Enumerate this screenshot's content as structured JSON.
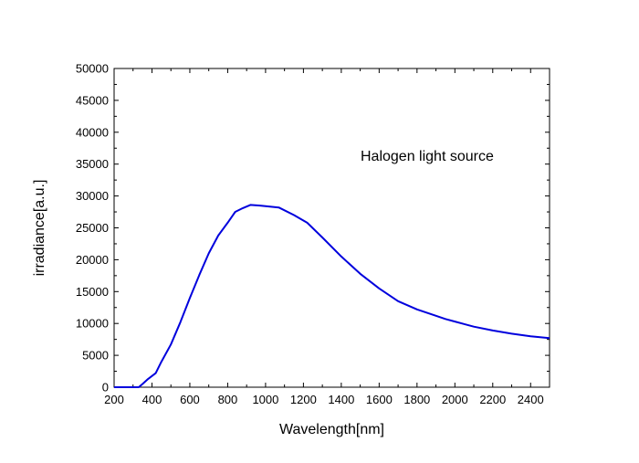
{
  "chart_data": {
    "type": "line",
    "xlabel": "Wavelength[nm]",
    "ylabel": "irradiance[a.u.]",
    "annotation": "Halogen light source",
    "xlim": [
      200,
      2500
    ],
    "ylim": [
      0,
      50000
    ],
    "x_ticks": [
      200,
      400,
      600,
      800,
      1000,
      1200,
      1400,
      1600,
      1800,
      2000,
      2200,
      2400
    ],
    "y_ticks": [
      0,
      5000,
      10000,
      15000,
      20000,
      25000,
      30000,
      35000,
      40000,
      45000,
      50000
    ],
    "grid": false,
    "series": [
      {
        "color": "#0000dd",
        "x": [
          200,
          300,
          330,
          350,
          380,
          420,
          450,
          500,
          550,
          600,
          650,
          700,
          750,
          800,
          840,
          880,
          920,
          970,
          1000,
          1070,
          1150,
          1220,
          1300,
          1400,
          1500,
          1600,
          1700,
          1800,
          1900,
          1950,
          2000,
          2100,
          2200,
          2300,
          2400,
          2500
        ],
        "y": [
          0,
          0,
          0,
          500,
          1300,
          2200,
          4000,
          6700,
          10200,
          14000,
          17600,
          21000,
          23800,
          25800,
          27500,
          28100,
          28600,
          28500,
          28400,
          28200,
          27000,
          25800,
          23500,
          20500,
          17800,
          15500,
          13500,
          12200,
          11200,
          10700,
          10300,
          9500,
          8900,
          8400,
          8000,
          7700
        ]
      }
    ]
  }
}
